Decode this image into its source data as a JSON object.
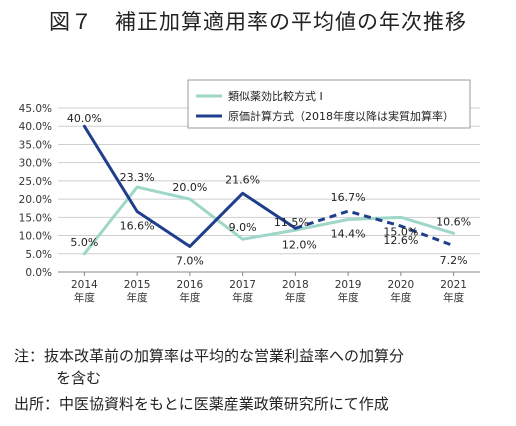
{
  "title": "図７　補正加算適用率の平均値の年次推移",
  "chart_data": {
    "type": "line",
    "categories": [
      [
        "2014",
        "年度"
      ],
      [
        "2015",
        "年度"
      ],
      [
        "2016",
        "年度"
      ],
      [
        "2017",
        "年度"
      ],
      [
        "2018",
        "年度"
      ],
      [
        "2019",
        "年度"
      ],
      [
        "2020",
        "年度"
      ],
      [
        "2021",
        "年度"
      ]
    ],
    "ylim": [
      0,
      45
    ],
    "yticks": [
      "0.0%",
      "5.0%",
      "10.0%",
      "15.0%",
      "20.0%",
      "25.0%",
      "30.0%",
      "35.0%",
      "40.0%",
      "45.0%"
    ],
    "grid": true,
    "legend_position": "top-right",
    "series": [
      {
        "name": "類似薬効比較方式 I",
        "color": "#9ed6c8",
        "values": [
          5.0,
          23.3,
          20.0,
          9.0,
          11.5,
          14.4,
          15.0,
          10.6
        ],
        "labels": [
          "5.0%",
          "23.3%",
          "20.0%",
          "9.0%",
          "11.5%",
          "14.4%",
          "15.0%",
          "10.6%"
        ]
      },
      {
        "name": "原価計算方式（2018年度以降は実質加算率）",
        "color": "#1f3e8c",
        "values": [
          40.0,
          16.6,
          7.0,
          21.6,
          12.0,
          16.7,
          12.6,
          7.2
        ],
        "labels": [
          "40.0%",
          "16.6%",
          "7.0%",
          "21.6%",
          "12.0%",
          "16.7%",
          "12.6%",
          "7.2%"
        ],
        "dashed_from_index": 4
      }
    ]
  },
  "notes": {
    "line1": "注：抜本改革前の加算率は平均的な営業利益率への加算分",
    "line2": "を含む",
    "line3": "出所：中医協資料をもとに医薬産業政策研究所にて作成"
  }
}
